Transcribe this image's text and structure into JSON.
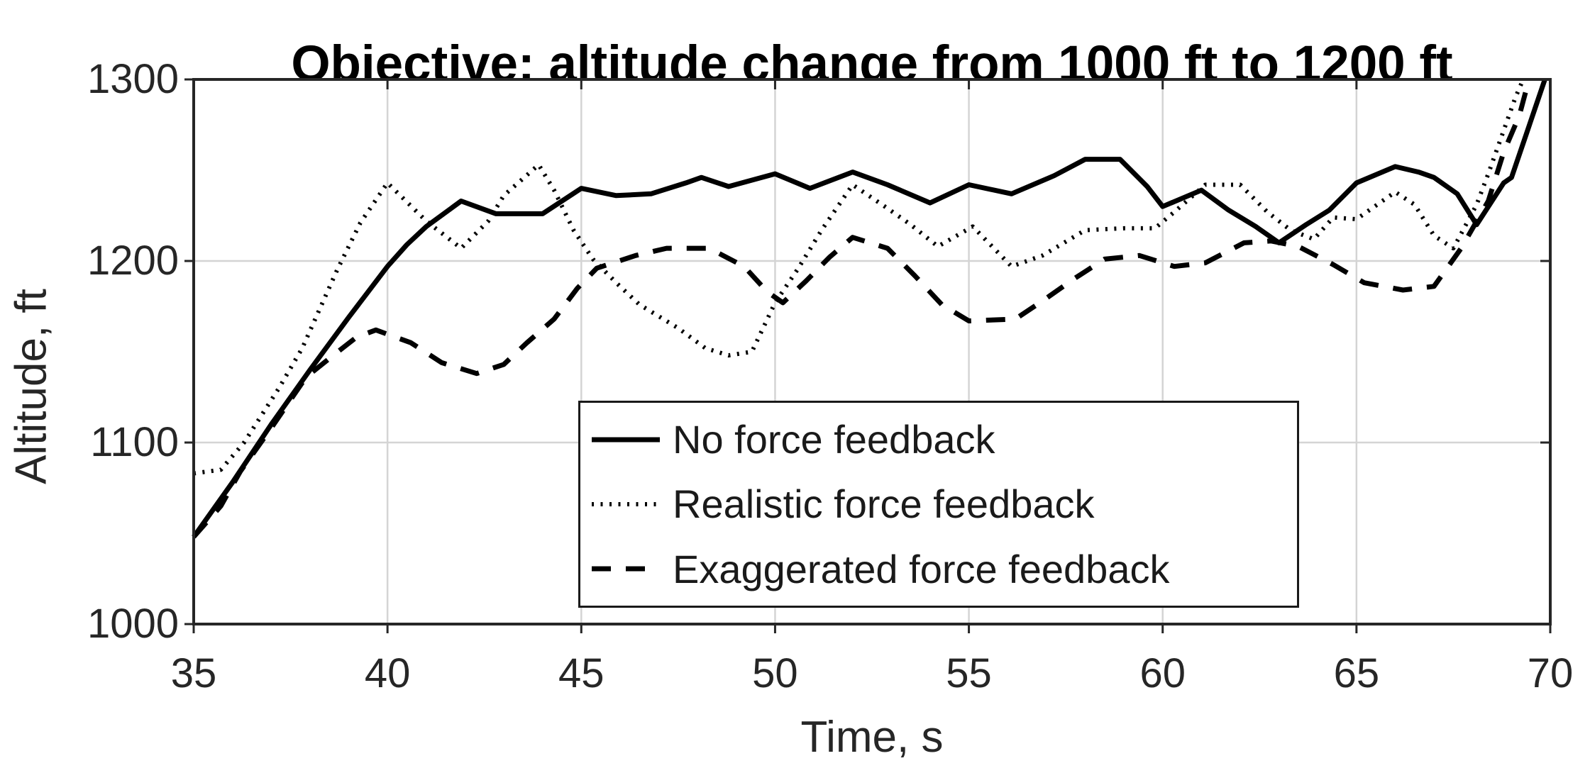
{
  "chart_data": {
    "type": "line",
    "title": "Objective: altitude change from 1000 ft to 1200 ft",
    "xlabel": "Time, s",
    "ylabel": "Altitude, ft",
    "xlim": [
      35,
      70
    ],
    "ylim": [
      1000,
      1300
    ],
    "xticks": [
      35,
      40,
      45,
      50,
      55,
      60,
      65,
      70
    ],
    "yticks": [
      1000,
      1100,
      1200,
      1300
    ],
    "grid": true,
    "legend_position": "inside lower-center",
    "colors": {
      "line": "#000000",
      "grid": "#d4d4d4",
      "axis": "#262626",
      "text": "#262626",
      "title": "#000000",
      "background": "#ffffff"
    },
    "series": [
      {
        "name": "No force feedback",
        "style": "solid",
        "points": [
          [
            35,
            1048
          ],
          [
            36,
            1078
          ],
          [
            37,
            1110
          ],
          [
            38,
            1140
          ],
          [
            39,
            1169
          ],
          [
            40,
            1197
          ],
          [
            40.5,
            1209
          ],
          [
            41,
            1219
          ],
          [
            41.9,
            1233
          ],
          [
            42.8,
            1226
          ],
          [
            44,
            1226
          ],
          [
            45,
            1240
          ],
          [
            45.9,
            1236
          ],
          [
            46.8,
            1237
          ],
          [
            47.7,
            1243
          ],
          [
            48.1,
            1246
          ],
          [
            48.8,
            1241
          ],
          [
            50,
            1248
          ],
          [
            50.9,
            1240
          ],
          [
            52,
            1249
          ],
          [
            52.9,
            1242
          ],
          [
            54,
            1232
          ],
          [
            55,
            1242
          ],
          [
            56.1,
            1237
          ],
          [
            57.2,
            1247
          ],
          [
            58,
            1256
          ],
          [
            58.9,
            1256
          ],
          [
            59.6,
            1241
          ],
          [
            60,
            1230
          ],
          [
            61,
            1239
          ],
          [
            61.7,
            1228
          ],
          [
            62.4,
            1219
          ],
          [
            63,
            1210
          ],
          [
            63.7,
            1220
          ],
          [
            64.3,
            1228
          ],
          [
            65,
            1243
          ],
          [
            66,
            1252
          ],
          [
            66.6,
            1249
          ],
          [
            67,
            1246
          ],
          [
            67.6,
            1237
          ],
          [
            68.1,
            1220
          ],
          [
            68.8,
            1243
          ],
          [
            69,
            1246
          ],
          [
            69.4,
            1271
          ],
          [
            69.86,
            1300
          ]
        ]
      },
      {
        "name": "Realistic force feedback",
        "style": "dotted",
        "points": [
          [
            35,
            1083
          ],
          [
            35.7,
            1085
          ],
          [
            36.3,
            1100
          ],
          [
            37.2,
            1130
          ],
          [
            37.8,
            1152
          ],
          [
            38.7,
            1195
          ],
          [
            39.3,
            1221
          ],
          [
            40,
            1243
          ],
          [
            41,
            1222
          ],
          [
            41.9,
            1207
          ],
          [
            42.6,
            1222
          ],
          [
            43,
            1236
          ],
          [
            43.9,
            1253
          ],
          [
            44.3,
            1239
          ],
          [
            44.8,
            1217
          ],
          [
            45.3,
            1201
          ],
          [
            45.9,
            1188
          ],
          [
            46.5,
            1176
          ],
          [
            47.5,
            1163
          ],
          [
            48.2,
            1152
          ],
          [
            48.8,
            1148
          ],
          [
            49.4,
            1150
          ],
          [
            50,
            1177
          ],
          [
            50.6,
            1196
          ],
          [
            51.2,
            1217
          ],
          [
            52,
            1242
          ],
          [
            52.9,
            1229
          ],
          [
            53.5,
            1220
          ],
          [
            54.2,
            1208
          ],
          [
            55.1,
            1219
          ],
          [
            56.1,
            1197
          ],
          [
            56.9,
            1203
          ],
          [
            58,
            1217
          ],
          [
            59,
            1218
          ],
          [
            59.8,
            1218
          ],
          [
            60.3,
            1227
          ],
          [
            61.1,
            1242
          ],
          [
            62,
            1242
          ],
          [
            62.7,
            1227
          ],
          [
            63.3,
            1217
          ],
          [
            63.9,
            1212
          ],
          [
            64.4,
            1224
          ],
          [
            65,
            1223
          ],
          [
            66,
            1238
          ],
          [
            66.5,
            1231
          ],
          [
            67,
            1214
          ],
          [
            67.5,
            1207
          ],
          [
            68.1,
            1231
          ],
          [
            68.4,
            1248
          ],
          [
            68.7,
            1266
          ],
          [
            69.1,
            1290
          ],
          [
            69.3,
            1300
          ]
        ]
      },
      {
        "name": "Exaggerated force feedback",
        "style": "dashed",
        "points": [
          [
            35,
            1048
          ],
          [
            35.7,
            1065
          ],
          [
            36.2,
            1084
          ],
          [
            37,
            1108
          ],
          [
            37.9,
            1136
          ],
          [
            38.6,
            1148
          ],
          [
            39.2,
            1158
          ],
          [
            39.7,
            1162
          ],
          [
            40.6,
            1155
          ],
          [
            41.4,
            1144
          ],
          [
            42.3,
            1138
          ],
          [
            43,
            1143
          ],
          [
            43.6,
            1155
          ],
          [
            44.3,
            1168
          ],
          [
            44.9,
            1185
          ],
          [
            45.4,
            1196
          ],
          [
            46.4,
            1203
          ],
          [
            47.2,
            1207
          ],
          [
            48.3,
            1207
          ],
          [
            49.2,
            1197
          ],
          [
            49.8,
            1183
          ],
          [
            50.2,
            1177
          ],
          [
            50.8,
            1189
          ],
          [
            51.4,
            1202
          ],
          [
            52,
            1213
          ],
          [
            52.9,
            1207
          ],
          [
            53.6,
            1192
          ],
          [
            54.3,
            1176
          ],
          [
            55,
            1167
          ],
          [
            56.2,
            1168
          ],
          [
            56.9,
            1178
          ],
          [
            57.7,
            1190
          ],
          [
            58.5,
            1201
          ],
          [
            59.4,
            1203
          ],
          [
            60.3,
            1197
          ],
          [
            61.1,
            1199
          ],
          [
            62.1,
            1210
          ],
          [
            62.8,
            1211
          ],
          [
            63.5,
            1208
          ],
          [
            64.4,
            1198
          ],
          [
            65.2,
            1188
          ],
          [
            66.2,
            1184
          ],
          [
            67,
            1186
          ],
          [
            67.7,
            1207
          ],
          [
            68.4,
            1233
          ],
          [
            68.8,
            1260
          ],
          [
            69.2,
            1280
          ],
          [
            69.45,
            1300
          ]
        ]
      }
    ]
  }
}
